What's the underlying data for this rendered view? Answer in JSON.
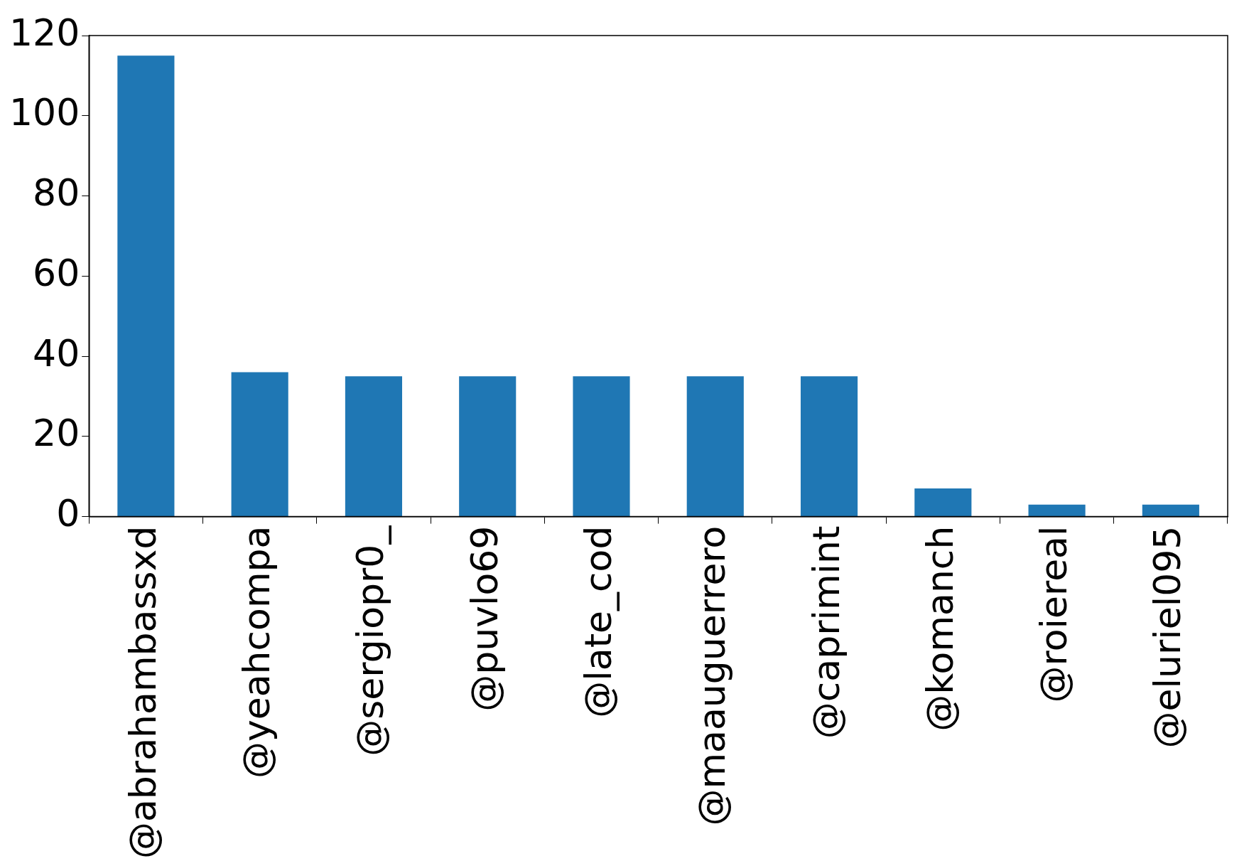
{
  "chart_data": {
    "type": "bar",
    "categories": [
      "@abrahambassxd",
      "@yeahcompa",
      "@sergiopr0_",
      "@puvlo69",
      "@late_cod",
      "@maauguerrero",
      "@caprimint",
      "@komanch",
      "@roiereal",
      "@eluriel095"
    ],
    "values": [
      115,
      36,
      35,
      35,
      35,
      35,
      35,
      7,
      3,
      3
    ],
    "color": "#1f77b4",
    "ylim": [
      0,
      120
    ],
    "yticks": [
      0,
      20,
      40,
      60,
      80,
      100,
      120
    ],
    "grid": false,
    "legend": false
  }
}
